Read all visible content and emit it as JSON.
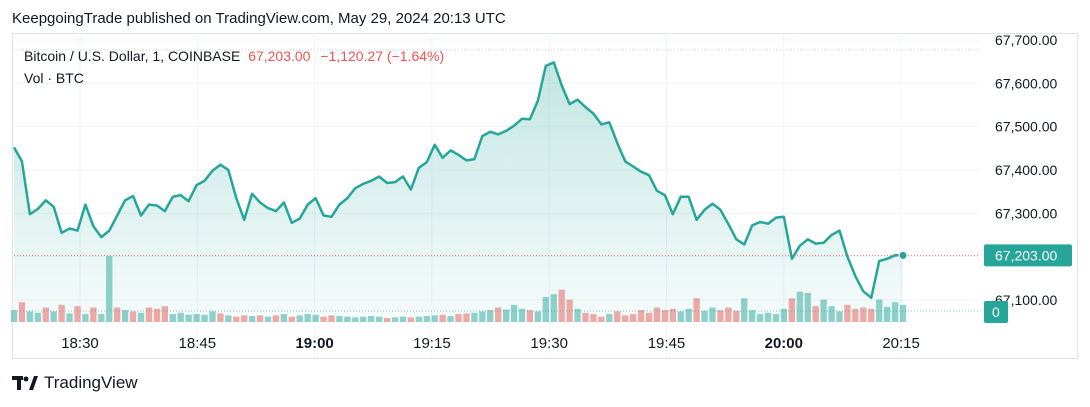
{
  "header": {
    "published_by": "KeepgoingTrade published on TradingView.com, May 29, 2024 20:13 UTC"
  },
  "legend": {
    "symbol": "Bitcoin / U.S. Dollar, 1, COINBASE",
    "price": "67,203.00",
    "change": "−1,120.27 (−1.64%)",
    "volume_label": "Vol · BTC"
  },
  "footer": {
    "brand": "TradingView"
  },
  "colors": {
    "line": "#26a69a",
    "up": "#26a69a",
    "down": "#ef5350",
    "fill_top": "#26a69a"
  },
  "chart_data": {
    "type": "line",
    "x_ticks": [
      "18:30",
      "18:45",
      "19:00",
      "19:15",
      "19:30",
      "19:45",
      "20:00",
      "20:15"
    ],
    "bold_ticks": [
      "19:00",
      "20:00"
    ],
    "y_ticks": [
      "67,100.00",
      "67,200.00",
      "67,300.00",
      "67,400.00",
      "67,500.00",
      "67,600.00",
      "67,700.00"
    ],
    "ylim": [
      67050,
      67710
    ],
    "last_price_label": "67,203.00",
    "volume_last_label": "0",
    "price": [
      67452,
      67420,
      67298,
      67310,
      67330,
      67315,
      67255,
      67265,
      67260,
      67320,
      67270,
      67245,
      67260,
      67295,
      67330,
      67340,
      67295,
      67320,
      67318,
      67305,
      67338,
      67342,
      67328,
      67365,
      67375,
      67398,
      67412,
      67400,
      67335,
      67285,
      67345,
      67325,
      67312,
      67305,
      67325,
      67278,
      67288,
      67320,
      67335,
      67295,
      67292,
      67320,
      67335,
      67358,
      67368,
      67375,
      67385,
      67370,
      67372,
      67385,
      67355,
      67405,
      67418,
      67458,
      67428,
      67445,
      67435,
      67422,
      67425,
      67478,
      67488,
      67482,
      67490,
      67502,
      67518,
      67517,
      67560,
      67640,
      67648,
      67595,
      67552,
      67562,
      67545,
      67530,
      67505,
      67510,
      67462,
      67420,
      67408,
      67396,
      67388,
      67352,
      67342,
      67298,
      67338,
      67338,
      67285,
      67308,
      67322,
      67308,
      67275,
      67240,
      67228,
      67272,
      67280,
      67276,
      67290,
      67292,
      67195,
      67225,
      67240,
      67230,
      67232,
      67250,
      67260,
      67200,
      67155,
      67120,
      67105,
      67190,
      67195,
      67203,
      67203
    ],
    "volume": [
      0.18,
      0.3,
      0.16,
      0.14,
      0.22,
      0.16,
      0.26,
      0.13,
      0.24,
      0.12,
      0.22,
      0.12,
      1.0,
      0.22,
      0.18,
      0.16,
      0.14,
      0.22,
      0.2,
      0.24,
      0.12,
      0.14,
      0.11,
      0.12,
      0.11,
      0.16,
      0.13,
      0.1,
      0.08,
      0.1,
      0.09,
      0.1,
      0.08,
      0.1,
      0.12,
      0.08,
      0.1,
      0.12,
      0.11,
      0.08,
      0.1,
      0.09,
      0.08,
      0.07,
      0.08,
      0.09,
      0.08,
      0.06,
      0.07,
      0.08,
      0.07,
      0.08,
      0.09,
      0.1,
      0.11,
      0.09,
      0.12,
      0.13,
      0.14,
      0.16,
      0.18,
      0.22,
      0.19,
      0.26,
      0.2,
      0.18,
      0.16,
      0.38,
      0.42,
      0.49,
      0.34,
      0.2,
      0.14,
      0.12,
      0.08,
      0.12,
      0.16,
      0.1,
      0.12,
      0.18,
      0.14,
      0.22,
      0.18,
      0.2,
      0.16,
      0.2,
      0.36,
      0.17,
      0.22,
      0.18,
      0.22,
      0.17,
      0.36,
      0.18,
      0.12,
      0.14,
      0.12,
      0.2,
      0.36,
      0.46,
      0.44,
      0.24,
      0.34,
      0.24,
      0.16,
      0.26,
      0.2,
      0.22,
      0.2,
      0.34,
      0.23,
      0.3,
      0.26
    ],
    "volume_dir": [
      "up",
      "down",
      "up",
      "up",
      "down",
      "up",
      "down",
      "up",
      "down",
      "up",
      "down",
      "up",
      "up",
      "down",
      "up",
      "down",
      "up",
      "down",
      "down",
      "down",
      "up",
      "up",
      "up",
      "up",
      "up",
      "up",
      "down",
      "up",
      "down",
      "down",
      "up",
      "down",
      "up",
      "down",
      "up",
      "down",
      "up",
      "up",
      "up",
      "down",
      "down",
      "up",
      "up",
      "up",
      "up",
      "up",
      "up",
      "down",
      "up",
      "up",
      "down",
      "up",
      "up",
      "up",
      "down",
      "up",
      "down",
      "down",
      "up",
      "up",
      "up",
      "down",
      "up",
      "up",
      "up",
      "down",
      "up",
      "up",
      "up",
      "down",
      "down",
      "up",
      "down",
      "down",
      "down",
      "up",
      "down",
      "down",
      "down",
      "down",
      "down",
      "down",
      "down",
      "down",
      "up",
      "up",
      "down",
      "up",
      "up",
      "down",
      "down",
      "down",
      "up",
      "up",
      "up",
      "up",
      "up",
      "up",
      "down",
      "up",
      "up",
      "down",
      "up",
      "up",
      "up",
      "down",
      "down",
      "down",
      "down",
      "up",
      "up",
      "up",
      "up"
    ]
  }
}
